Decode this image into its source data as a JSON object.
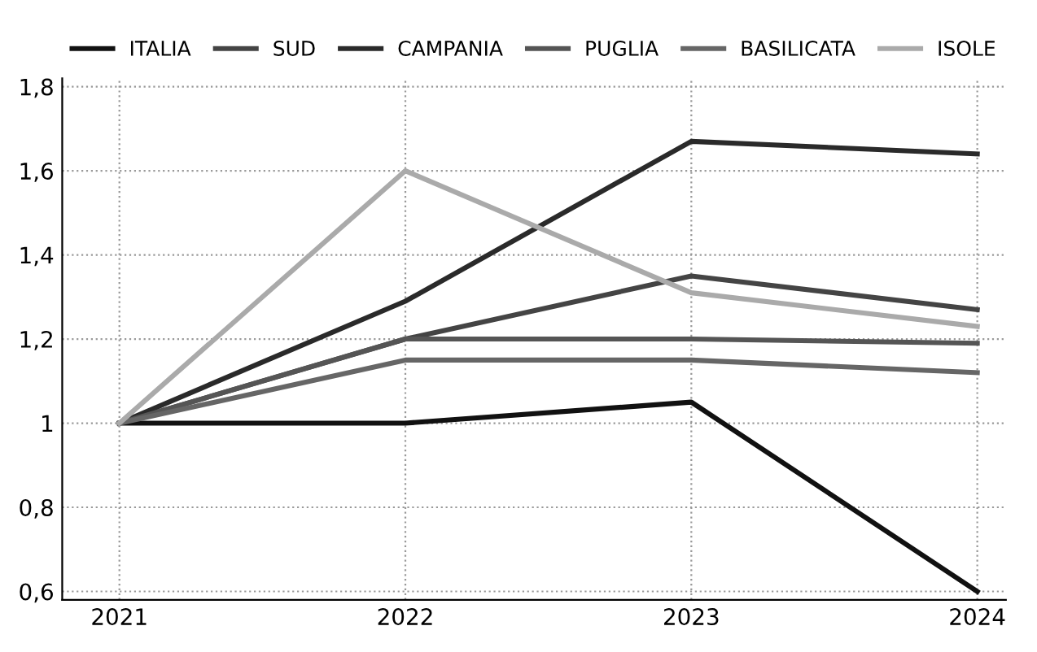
{
  "chart_data": {
    "type": "line",
    "x": [
      2021,
      2022,
      2023,
      2024
    ],
    "series": [
      {
        "name": "ITALIA",
        "color": "#111111",
        "values": [
          1,
          1,
          1.05,
          0.6
        ]
      },
      {
        "name": "SUD",
        "color": "#444444",
        "values": [
          1,
          1.2,
          1.35,
          1.27
        ]
      },
      {
        "name": "CAMPANIA",
        "color": "#2a2a2a",
        "values": [
          1,
          1.29,
          1.67,
          1.64
        ]
      },
      {
        "name": "PUGLIA",
        "color": "#555555",
        "values": [
          1,
          1.2,
          1.2,
          1.19
        ]
      },
      {
        "name": "BASILICATA",
        "color": "#666666",
        "values": [
          1,
          1.15,
          1.15,
          1.12
        ]
      },
      {
        "name": "ISOLE",
        "color": "#aaaaaa",
        "values": [
          1,
          1.6,
          1.31,
          1.23
        ]
      }
    ],
    "xlim": [
      2020.8,
      2024.1
    ],
    "xticks": [
      2021,
      2022,
      2023,
      2024
    ],
    "ylim": [
      0.58,
      1.82
    ],
    "yticks": [
      {
        "value": 0.6,
        "label": "0,6"
      },
      {
        "value": 0.8,
        "label": "0,8"
      },
      {
        "value": 1,
        "label": "1"
      },
      {
        "value": 1.2,
        "label": "1,2"
      },
      {
        "value": 1.4,
        "label": "1,4"
      },
      {
        "value": 1.6,
        "label": "1,6"
      },
      {
        "value": 1.8,
        "label": "1,8"
      }
    ],
    "grid": true,
    "legend": "top"
  }
}
